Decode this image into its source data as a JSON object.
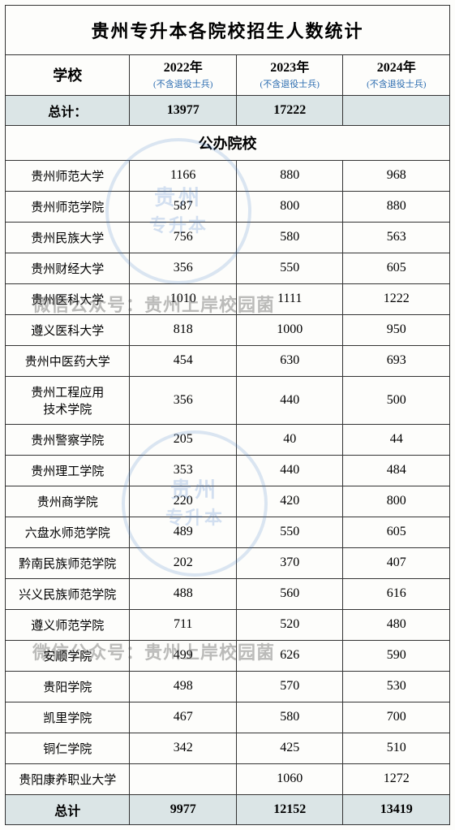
{
  "title": "贵州专升本各院校招生人数统计",
  "headers": {
    "school": "学校",
    "years": [
      {
        "year": "2022年",
        "sub": "(不含退役士兵)"
      },
      {
        "year": "2023年",
        "sub": "(不含退役士兵)"
      },
      {
        "year": "2024年",
        "sub": "(不含退役士兵)"
      }
    ]
  },
  "top_total": {
    "label": "总计：",
    "v2022": "13977",
    "v2023": "17222",
    "v2024": ""
  },
  "section_label": "公办院校",
  "rows": [
    {
      "name": "贵州师范大学",
      "v2022": "1166",
      "v2023": "880",
      "v2024": "968"
    },
    {
      "name": "贵州师范学院",
      "v2022": "587",
      "v2023": "800",
      "v2024": "880"
    },
    {
      "name": "贵州民族大学",
      "v2022": "756",
      "v2023": "580",
      "v2024": "563"
    },
    {
      "name": "贵州财经大学",
      "v2022": "356",
      "v2023": "550",
      "v2024": "605"
    },
    {
      "name": "贵州医科大学",
      "v2022": "1010",
      "v2023": "1111",
      "v2024": "1222"
    },
    {
      "name": "遵义医科大学",
      "v2022": "818",
      "v2023": "1000",
      "v2024": "950"
    },
    {
      "name": "贵州中医药大学",
      "v2022": "454",
      "v2023": "630",
      "v2024": "693"
    },
    {
      "name": "贵州工程应用\n技术学院",
      "v2022": "356",
      "v2023": "440",
      "v2024": "500"
    },
    {
      "name": "贵州警察学院",
      "v2022": "205",
      "v2023": "40",
      "v2024": "44"
    },
    {
      "name": "贵州理工学院",
      "v2022": "353",
      "v2023": "440",
      "v2024": "484"
    },
    {
      "name": "贵州商学院",
      "v2022": "220",
      "v2023": "420",
      "v2024": "800"
    },
    {
      "name": "六盘水师范学院",
      "v2022": "489",
      "v2023": "550",
      "v2024": "605"
    },
    {
      "name": "黔南民族师范学院",
      "v2022": "202",
      "v2023": "370",
      "v2024": "407"
    },
    {
      "name": "兴义民族师范学院",
      "v2022": "488",
      "v2023": "560",
      "v2024": "616"
    },
    {
      "name": "遵义师范学院",
      "v2022": "711",
      "v2023": "520",
      "v2024": "480"
    },
    {
      "name": "安顺学院",
      "v2022": "499",
      "v2023": "626",
      "v2024": "590"
    },
    {
      "name": "贵阳学院",
      "v2022": "498",
      "v2023": "570",
      "v2024": "530"
    },
    {
      "name": "凯里学院",
      "v2022": "467",
      "v2023": "580",
      "v2024": "700"
    },
    {
      "name": "铜仁学院",
      "v2022": "342",
      "v2023": "425",
      "v2024": "510"
    },
    {
      "name": "贵阳康养职业大学",
      "v2022": "",
      "v2023": "1060",
      "v2024": "1272"
    }
  ],
  "bottom_total": {
    "label": "总计",
    "v2022": "9977",
    "v2023": "12152",
    "v2024": "13419"
  },
  "watermarks": {
    "stamp_line1": "贵州",
    "stamp_line2": "专升本",
    "text": "微信公众号：贵州上岸校园菌"
  },
  "style": {
    "border_color": "#333333",
    "total_bg": "#dbe5e6",
    "header_sub_color": "#2b6cb0",
    "title_fontsize": 22,
    "body_fontsize": 16,
    "stamp_color": "rgba(60,120,200,0.2)",
    "wm_text_color": "rgba(80,80,80,0.38)"
  }
}
